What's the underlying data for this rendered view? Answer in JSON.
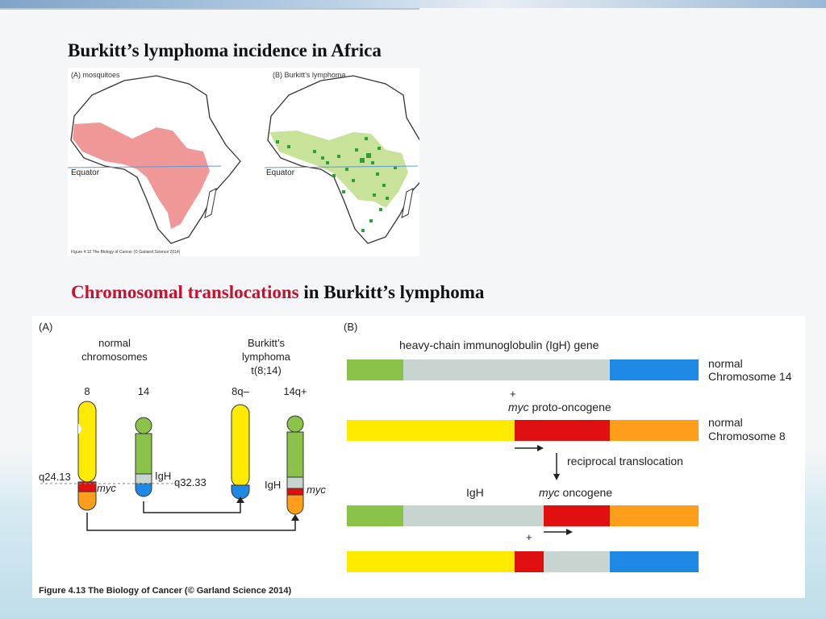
{
  "slide": {
    "heading1": "Burkitt’s lymphoma incidence in Africa",
    "heading2_red": "Chromosomal translocations",
    "heading2_rest": " in Burkitt’s lymphoma"
  },
  "fig412": {
    "panel_a_label": "(A)  mosquitoes",
    "panel_b_label": "(B)  Burkitt’s lymphoma",
    "equator_label": "Equator",
    "caption": "Figure 4.12 The Biology of Cancer (© Garland Science 2014)"
  },
  "fig413": {
    "panel_a": "(A)",
    "normal_line1": "normal",
    "normal_line2": "chromosomes",
    "burkitt_line1": "Burkitt’s",
    "burkitt_line2": "lymphoma",
    "burkitt_line3": "t(8;14)",
    "chr8": "8",
    "chr14": "14",
    "chr8q": "8q–",
    "chr14q": "14q+",
    "q2413": "q24.13",
    "myc": "myc",
    "igh": "IgH",
    "q3233": "q32.33",
    "igh2": "IgH",
    "myc2": "myc",
    "panel_b": "(B)",
    "igh_gene_label": "heavy-chain immunoglobulin (IgH) gene",
    "normal_chr14_l1": "normal",
    "normal_chr14_l2": "Chromosome 14",
    "plus1": "+",
    "myc_proto_italic": "myc",
    "myc_proto_rest": " proto-oncogene",
    "normal_chr8_l1": "normal",
    "normal_chr8_l2": "Chromosome 8",
    "reciprocal": "reciprocal translocation",
    "igh_label3": "IgH",
    "myc_onc_italic": "myc",
    "myc_onc_rest": " oncogene",
    "plus2": "+",
    "caption": "Figure 4.13  The Biology of Cancer (© Garland Science 2014)"
  },
  "colors": {
    "green": "#8bc34a",
    "grey": "#c8d4d0",
    "blue": "#1e88e5",
    "yellow": "#ffeb00",
    "red": "#e01010",
    "orange": "#ff9e1b",
    "mosquito": "#f09898",
    "lymphoma_light": "#c8e29a",
    "lymphoma_dark": "#2e9e3a"
  }
}
